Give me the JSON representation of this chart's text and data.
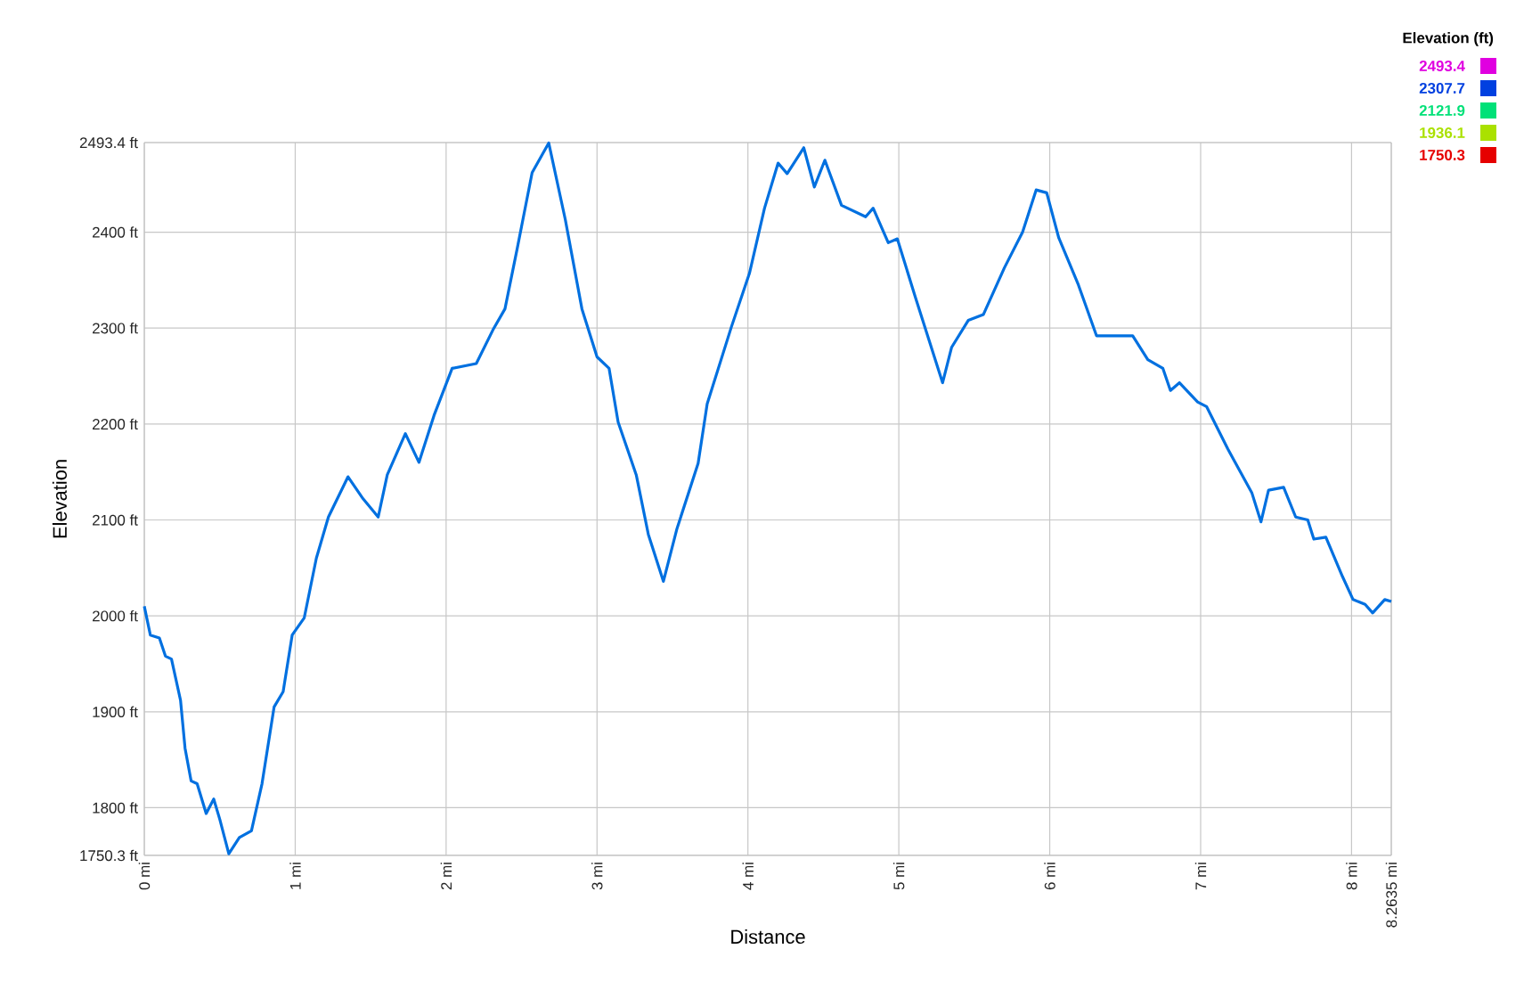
{
  "chart_data": {
    "type": "line",
    "xlabel": "Distance",
    "ylabel": "Elevation",
    "clabel": "Elevation (ft)",
    "x": [
      0,
      0.04,
      0.1,
      0.14,
      0.18,
      0.24,
      0.27,
      0.31,
      0.35,
      0.41,
      0.46,
      0.5,
      0.56,
      0.63,
      0.71,
      0.78,
      0.86,
      0.92,
      0.98,
      1.06,
      1.14,
      1.22,
      1.35,
      1.45,
      1.55,
      1.61,
      1.73,
      1.82,
      1.92,
      2.04,
      2.2,
      2.31,
      2.39,
      2.47,
      2.57,
      2.68,
      2.79,
      2.9,
      3.0,
      3.08,
      3.14,
      3.26,
      3.34,
      3.44,
      3.53,
      3.67,
      3.73,
      3.89,
      4.01,
      4.11,
      4.2,
      4.26,
      4.37,
      4.44,
      4.51,
      4.62,
      4.78,
      4.83,
      4.93,
      4.99,
      5.11,
      5.29,
      5.35,
      5.46,
      5.56,
      5.7,
      5.82,
      5.91,
      5.98,
      6.06,
      6.19,
      6.31,
      6.55,
      6.65,
      6.75,
      6.8,
      6.86,
      6.98,
      7.04,
      7.18,
      7.34,
      7.4,
      7.45,
      7.55,
      7.63,
      7.71,
      7.75,
      7.83,
      7.94,
      8.01,
      8.09,
      8.14,
      8.22,
      8.2635
    ],
    "values": [
      2010,
      1980,
      1977,
      1958,
      1955,
      1912,
      1862,
      1828,
      1825,
      1794,
      1809,
      1788,
      1752,
      1769,
      1776,
      1825,
      1905,
      1921,
      1980,
      1998,
      2060,
      2103,
      2145,
      2122,
      2103,
      2147,
      2190,
      2160,
      2209,
      2258,
      2263,
      2298,
      2320,
      2382,
      2462,
      2493,
      2413,
      2320,
      2270,
      2258,
      2202,
      2147,
      2085,
      2036,
      2091,
      2159,
      2221,
      2301,
      2357,
      2425,
      2472,
      2461,
      2488,
      2447,
      2475,
      2428,
      2416,
      2425,
      2389,
      2393,
      2332,
      2243,
      2280,
      2308,
      2314,
      2363,
      2400,
      2444,
      2441,
      2394,
      2345,
      2292,
      2292,
      2267,
      2258,
      2235,
      2243,
      2223,
      2218,
      2174,
      2128,
      2098,
      2131,
      2134,
      2103,
      2100,
      2080,
      2082,
      2041,
      2017,
      2012,
      2003,
      2017,
      2015
    ],
    "xlim": [
      0,
      8.2635
    ],
    "ylim": [
      1750.3,
      2493.4
    ],
    "xticks": [
      {
        "value": 0,
        "label": "0 mi"
      },
      {
        "value": 1,
        "label": "1 mi"
      },
      {
        "value": 2,
        "label": "2 mi"
      },
      {
        "value": 3,
        "label": "3 mi"
      },
      {
        "value": 4,
        "label": "4 mi"
      },
      {
        "value": 5,
        "label": "5 mi"
      },
      {
        "value": 6,
        "label": "6 mi"
      },
      {
        "value": 7,
        "label": "7 mi"
      },
      {
        "value": 8,
        "label": "8 mi"
      },
      {
        "value": 8.2635,
        "label": "8.2635 mi"
      }
    ],
    "yticks": [
      {
        "value": 1750.3,
        "label": "1750.3 ft"
      },
      {
        "value": 1800,
        "label": "1800 ft"
      },
      {
        "value": 1900,
        "label": "1900 ft"
      },
      {
        "value": 2000,
        "label": "2000 ft"
      },
      {
        "value": 2100,
        "label": "2100 ft"
      },
      {
        "value": 2200,
        "label": "2200 ft"
      },
      {
        "value": 2300,
        "label": "2300 ft"
      },
      {
        "value": 2400,
        "label": "2400 ft"
      },
      {
        "value": 2493.4,
        "label": "2493.4 ft"
      }
    ],
    "clim": [
      1750.3,
      2493.4
    ],
    "cticks": [
      2493.4,
      2307.7,
      2121.9,
      1936.1,
      1750.3
    ],
    "color": "#0070e0",
    "grid": true
  }
}
